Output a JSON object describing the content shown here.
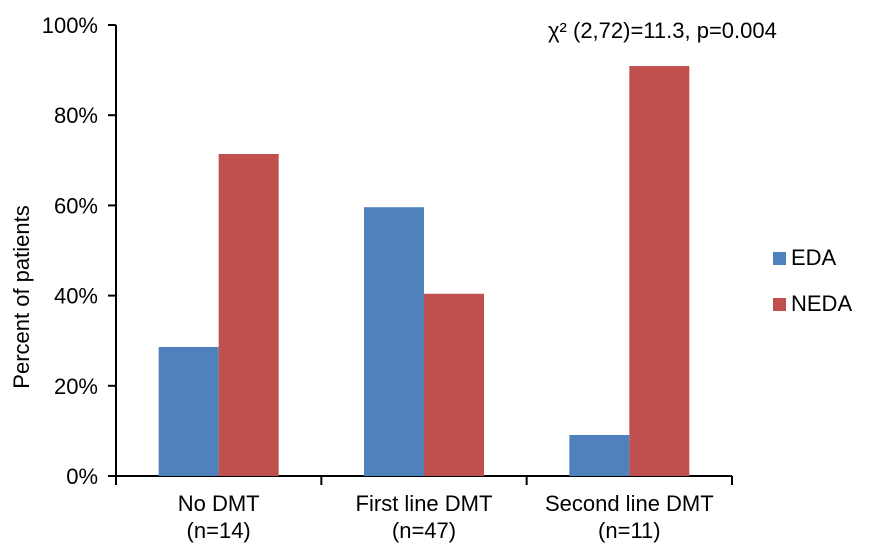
{
  "chart_data": {
    "type": "bar",
    "annotation": "χ² (2,72)=11.3, p=0.004",
    "ylabel": "Percent of patients",
    "categories": [
      [
        "No DMT",
        "(n=14)"
      ],
      [
        "First line DMT",
        "(n=47)"
      ],
      [
        "Second line DMT",
        "(n=11)"
      ]
    ],
    "series": [
      {
        "name": "EDA",
        "color": "#4f81bd",
        "values": [
          28.6,
          59.6,
          9.1
        ]
      },
      {
        "name": "NEDA",
        "color": "#c0504d",
        "values": [
          71.4,
          40.4,
          90.9
        ]
      }
    ],
    "yticks": [
      "0%",
      "20%",
      "40%",
      "60%",
      "80%",
      "100%"
    ],
    "ylim": [
      0,
      100
    ],
    "grid": false,
    "legend": "right"
  }
}
